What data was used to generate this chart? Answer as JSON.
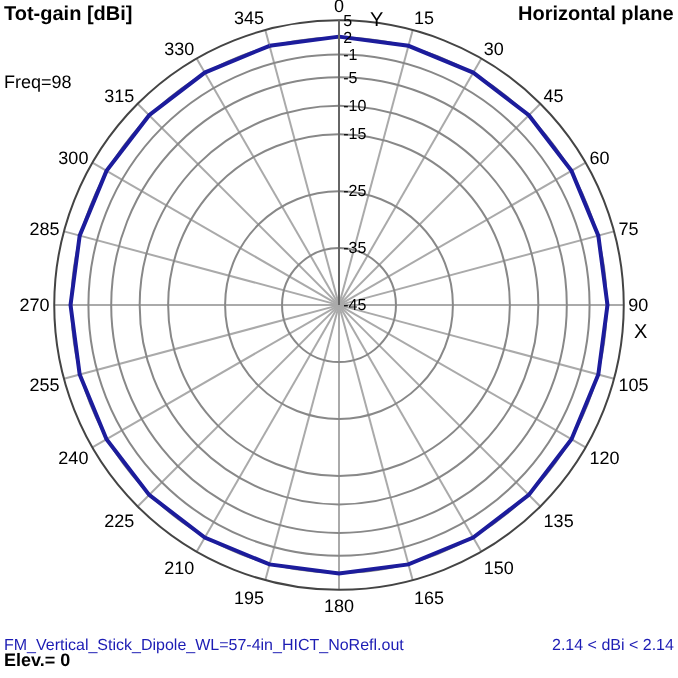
{
  "chart_data": {
    "type": "radar",
    "title": "Tot-gain [dBi]",
    "subtitle": "Horizontal plane",
    "categories": [
      "0",
      "15",
      "30",
      "45",
      "60",
      "75",
      "90",
      "105",
      "120",
      "135",
      "150",
      "165",
      "180",
      "195",
      "210",
      "225",
      "240",
      "255",
      "270",
      "285",
      "300",
      "315",
      "330",
      "345"
    ],
    "series": [
      {
        "color": "#1c1c9c",
        "values": [
          2.14,
          2.14,
          2.14,
          2.14,
          2.14,
          2.14,
          2.14,
          2.14,
          2.14,
          2.14,
          2.14,
          2.14,
          2.14,
          2.14,
          2.14,
          2.14,
          2.14,
          2.14,
          2.14,
          2.14,
          2.14,
          2.14,
          2.14,
          2.14
        ]
      }
    ],
    "ylim": [
      -45,
      5
    ],
    "yticks": [
      5,
      2,
      -1,
      -5,
      -10,
      -15,
      -25,
      -35,
      -45
    ],
    "annotations": [
      "Y",
      "X",
      "Freq=98",
      "FM_Vertical_Stick_Dipole_WL=57-4in_HICT_NoRefl.out",
      "2.14 < dBi < 2.14",
      "Elev.= 0"
    ],
    "grid": true,
    "marker": "none",
    "line_style": "solid"
  }
}
